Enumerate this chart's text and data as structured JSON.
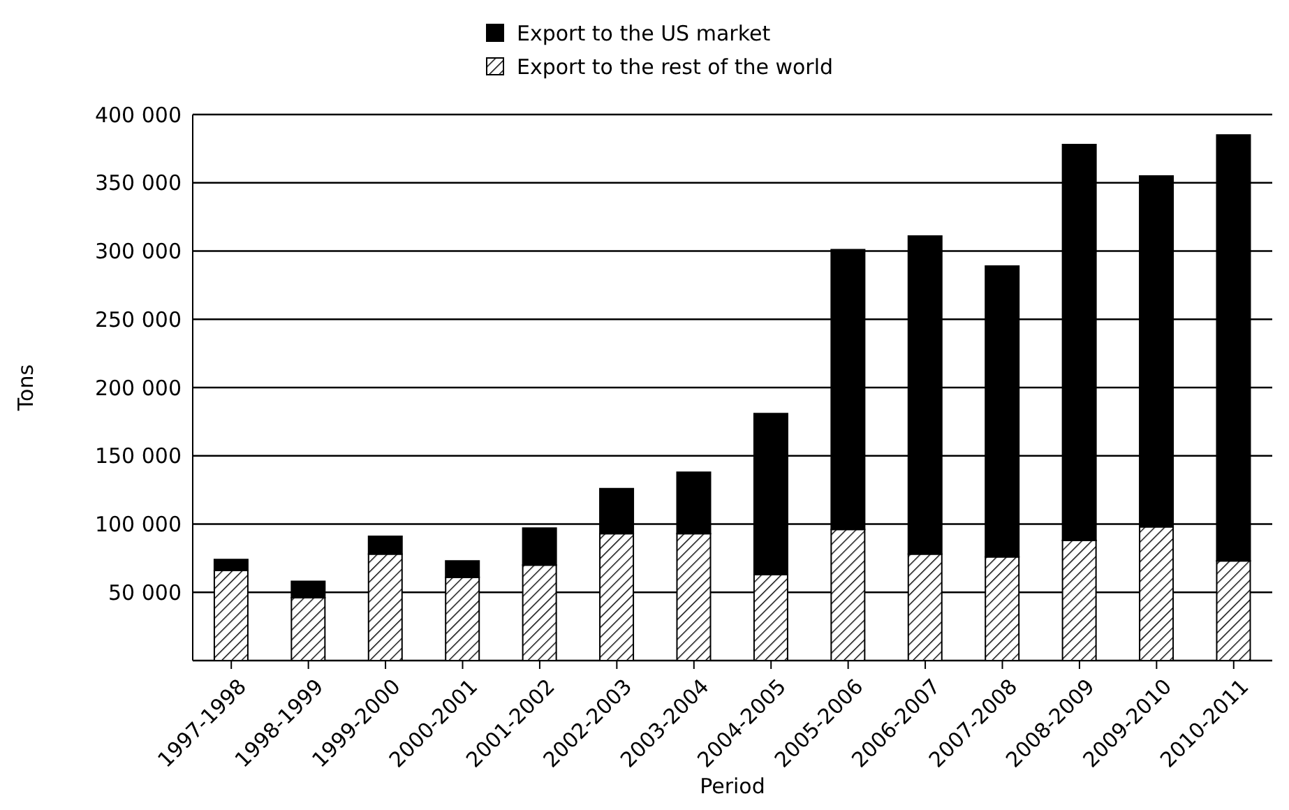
{
  "chart_data": {
    "type": "bar",
    "stacked": true,
    "xlabel": "Period",
    "ylabel": "Tons",
    "categories": [
      "1997-1998",
      "1998-1999",
      "1999-2000",
      "2000-2001",
      "2001-2002",
      "2002-2003",
      "2003-2004",
      "2004-2005",
      "2005-2006",
      "2006-2007",
      "2007-2008",
      "2008-2009",
      "2009-2010",
      "2010-2011"
    ],
    "series": [
      {
        "name": "Export to the rest of the world",
        "color": "#000000",
        "values": [
          66000,
          46000,
          78000,
          61000,
          70000,
          93000,
          93000,
          63000,
          96000,
          78000,
          76000,
          88000,
          98000,
          73000
        ]
      },
      {
        "name": "Export to the US market",
        "color": "#000000",
        "values": [
          8000,
          12000,
          13000,
          12000,
          27000,
          33000,
          45000,
          118000,
          205000,
          233000,
          213000,
          290000,
          257000,
          312000
        ]
      }
    ],
    "ylim": [
      0,
      400000
    ],
    "yticks": [
      {
        "value": 0,
        "label": null
      },
      {
        "value": 50000,
        "label": "50 000"
      },
      {
        "value": 100000,
        "label": "100 000"
      },
      {
        "value": 150000,
        "label": "150 000"
      },
      {
        "value": 200000,
        "label": "200 000"
      },
      {
        "value": 250000,
        "label": "250 000"
      },
      {
        "value": 300000,
        "label": "300 000"
      },
      {
        "value": 350000,
        "label": "350 000"
      },
      {
        "value": 400000,
        "label": "400 000"
      }
    ],
    "grid": "y",
    "legend": "top"
  }
}
